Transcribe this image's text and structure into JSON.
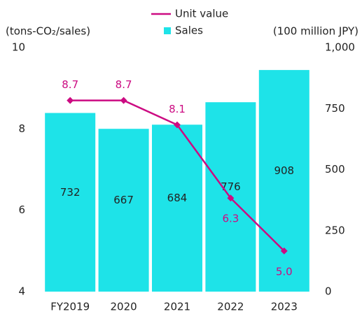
{
  "chart_data": {
    "type": "bar",
    "ylabel": "(tons-CO₂/sales)",
    "y2label": "(100 million JPY)",
    "categories": [
      "FY2019",
      "2020",
      "2021",
      "2022",
      "2023"
    ],
    "series": [
      {
        "name": "Unit value",
        "type": "line",
        "axis": "y",
        "color": "#cc0b82",
        "values": [
          8.7,
          8.7,
          8.1,
          6.3,
          5.0
        ],
        "value_labels": [
          "8.7",
          "8.7",
          "8.1",
          "6.3",
          "5.0"
        ]
      },
      {
        "name": "Sales",
        "type": "bar",
        "axis": "y2",
        "color": "#1ee3e8",
        "values": [
          732,
          667,
          684,
          776,
          908
        ]
      }
    ],
    "ylim": [
      4,
      10
    ],
    "yticks": [
      4,
      6,
      8,
      10
    ],
    "y2lim": [
      0,
      1000
    ],
    "y2ticks": [
      0,
      250,
      500,
      750,
      {
        "value": 1000,
        "label": "1,000"
      }
    ],
    "legend": "top",
    "grid": false
  }
}
